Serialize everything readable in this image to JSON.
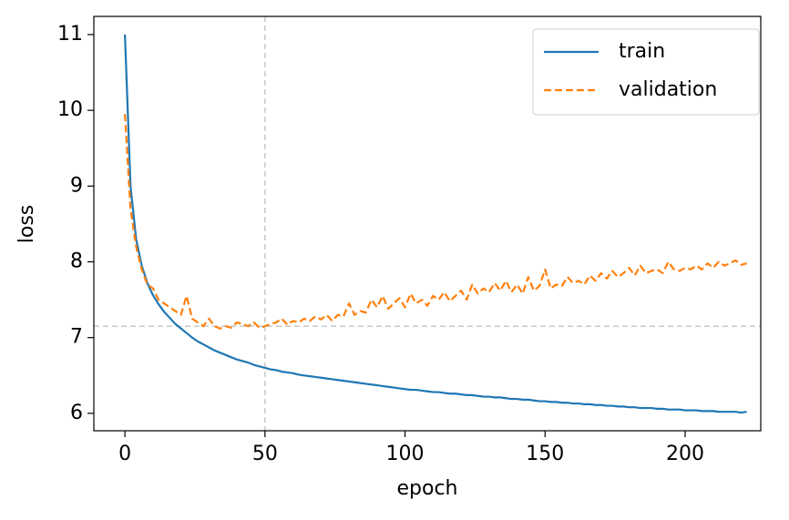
{
  "chart_data": {
    "type": "line",
    "x_label": "epoch",
    "y_label": "loss",
    "x": [
      0,
      2,
      4,
      6,
      8,
      10,
      12,
      14,
      16,
      18,
      20,
      22,
      24,
      26,
      28,
      30,
      32,
      34,
      36,
      38,
      40,
      42,
      44,
      46,
      48,
      50,
      52,
      54,
      56,
      58,
      60,
      62,
      64,
      66,
      68,
      70,
      72,
      74,
      76,
      78,
      80,
      82,
      84,
      86,
      88,
      90,
      92,
      94,
      96,
      98,
      100,
      102,
      104,
      106,
      108,
      110,
      112,
      114,
      116,
      118,
      120,
      122,
      124,
      126,
      128,
      130,
      132,
      134,
      136,
      138,
      140,
      142,
      144,
      146,
      148,
      150,
      152,
      154,
      156,
      158,
      160,
      162,
      164,
      166,
      168,
      170,
      172,
      174,
      176,
      178,
      180,
      182,
      184,
      186,
      188,
      190,
      192,
      194,
      196,
      198,
      200,
      202,
      204,
      206,
      208,
      210,
      212,
      214,
      216,
      218,
      220,
      222
    ],
    "series": [
      {
        "name": "train",
        "color": "#1f77b4",
        "dash": false,
        "values": [
          11.0,
          9.0,
          8.3,
          7.95,
          7.72,
          7.56,
          7.44,
          7.34,
          7.26,
          7.18,
          7.12,
          7.06,
          7.0,
          6.95,
          6.91,
          6.87,
          6.83,
          6.8,
          6.77,
          6.74,
          6.71,
          6.69,
          6.67,
          6.64,
          6.62,
          6.6,
          6.58,
          6.57,
          6.55,
          6.54,
          6.53,
          6.51,
          6.5,
          6.49,
          6.48,
          6.47,
          6.46,
          6.45,
          6.44,
          6.43,
          6.42,
          6.41,
          6.4,
          6.39,
          6.38,
          6.37,
          6.36,
          6.35,
          6.34,
          6.33,
          6.32,
          6.31,
          6.31,
          6.3,
          6.29,
          6.28,
          6.28,
          6.27,
          6.26,
          6.26,
          6.25,
          6.24,
          6.24,
          6.23,
          6.22,
          6.22,
          6.21,
          6.21,
          6.2,
          6.19,
          6.19,
          6.18,
          6.18,
          6.17,
          6.16,
          6.16,
          6.15,
          6.15,
          6.14,
          6.14,
          6.13,
          6.13,
          6.12,
          6.12,
          6.11,
          6.11,
          6.1,
          6.1,
          6.09,
          6.09,
          6.08,
          6.08,
          6.07,
          6.07,
          6.07,
          6.06,
          6.06,
          6.05,
          6.05,
          6.05,
          6.04,
          6.04,
          6.04,
          6.03,
          6.03,
          6.03,
          6.02,
          6.02,
          6.02,
          6.02,
          6.01,
          6.02
        ]
      },
      {
        "name": "validation",
        "color": "#ff7f0e",
        "dash": true,
        "values": [
          9.95,
          8.7,
          8.2,
          7.9,
          7.7,
          7.65,
          7.5,
          7.45,
          7.4,
          7.35,
          7.3,
          7.55,
          7.25,
          7.2,
          7.15,
          7.25,
          7.15,
          7.12,
          7.15,
          7.13,
          7.2,
          7.18,
          7.15,
          7.2,
          7.13,
          7.15,
          7.18,
          7.2,
          7.25,
          7.17,
          7.22,
          7.2,
          7.25,
          7.22,
          7.28,
          7.24,
          7.3,
          7.22,
          7.3,
          7.28,
          7.45,
          7.3,
          7.35,
          7.33,
          7.5,
          7.4,
          7.55,
          7.38,
          7.45,
          7.52,
          7.4,
          7.58,
          7.45,
          7.5,
          7.42,
          7.55,
          7.5,
          7.6,
          7.48,
          7.55,
          7.62,
          7.5,
          7.7,
          7.58,
          7.65,
          7.6,
          7.72,
          7.62,
          7.75,
          7.6,
          7.7,
          7.58,
          7.8,
          7.62,
          7.68,
          7.9,
          7.65,
          7.7,
          7.68,
          7.8,
          7.72,
          7.75,
          7.7,
          7.82,
          7.75,
          7.85,
          7.78,
          7.88,
          7.8,
          7.85,
          7.92,
          7.82,
          7.95,
          7.85,
          7.88,
          7.9,
          7.85,
          8.0,
          7.9,
          7.88,
          7.92,
          7.9,
          7.95,
          7.9,
          7.98,
          7.92,
          8.0,
          7.95,
          7.98,
          8.02,
          7.96,
          7.98
        ]
      }
    ],
    "vline": 50,
    "hline": 7.15,
    "ref_line_color": "#c8c8c8",
    "xlim": [
      -11.1,
      227
    ],
    "ylim": [
      5.77,
      11.24
    ],
    "xticks": [
      0,
      50,
      100,
      150,
      200
    ],
    "yticks": [
      6,
      7,
      8,
      9,
      10,
      11
    ],
    "grid": false,
    "legend": "upper right"
  }
}
